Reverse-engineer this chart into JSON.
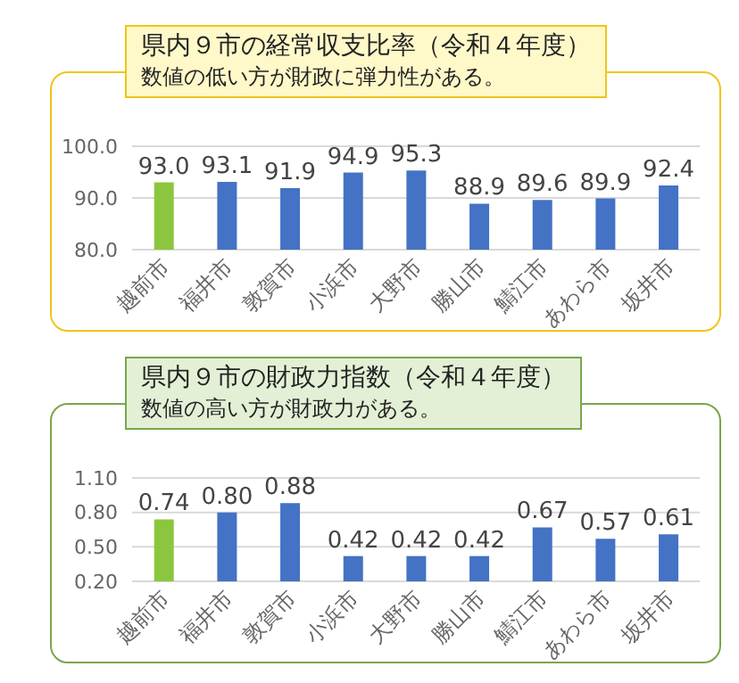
{
  "chart_data": [
    {
      "type": "bar",
      "title": "県内９市の経常収支比率（令和４年度）",
      "subtitle": "数値の低い方が財政に弾力性がある。",
      "categories": [
        "越前市",
        "福井市",
        "敦賀市",
        "小浜市",
        "大野市",
        "勝山市",
        "鯖江市",
        "あわら市",
        "坂井市"
      ],
      "values": [
        93.0,
        93.1,
        91.9,
        94.9,
        95.3,
        88.9,
        89.6,
        89.9,
        92.4
      ],
      "value_labels": [
        "93.0",
        "93.1",
        "91.9",
        "94.9",
        "95.3",
        "88.9",
        "89.6",
        "89.9",
        "92.4"
      ],
      "colors": [
        "#8cc63e",
        "#4472c4",
        "#4472c4",
        "#4472c4",
        "#4472c4",
        "#4472c4",
        "#4472c4",
        "#4472c4",
        "#4472c4"
      ],
      "ylim": [
        80,
        100
      ],
      "yticks": [
        {
          "value": 80,
          "label": "80.0"
        },
        {
          "value": 90,
          "label": "90.0"
        },
        {
          "value": 100,
          "label": "100.0"
        }
      ],
      "grid": "y"
    },
    {
      "type": "bar",
      "title": "県内９市の財政力指数（令和４年度）",
      "subtitle": "数値の高い方が財政力がある。",
      "categories": [
        "越前市",
        "福井市",
        "敦賀市",
        "小浜市",
        "大野市",
        "勝山市",
        "鯖江市",
        "あわら市",
        "坂井市"
      ],
      "values": [
        0.74,
        0.8,
        0.88,
        0.42,
        0.42,
        0.42,
        0.67,
        0.57,
        0.61
      ],
      "value_labels": [
        "0.74",
        "0.80",
        "0.88",
        "0.42",
        "0.42",
        "0.42",
        "0.67",
        "0.57",
        "0.61"
      ],
      "colors": [
        "#8cc63e",
        "#4472c4",
        "#4472c4",
        "#4472c4",
        "#4472c4",
        "#4472c4",
        "#4472c4",
        "#4472c4",
        "#4472c4"
      ],
      "ylim": [
        0.2,
        1.1
      ],
      "yticks": [
        {
          "value": 0.2,
          "label": "0.20"
        },
        {
          "value": 0.5,
          "label": "0.50"
        },
        {
          "value": 0.8,
          "label": "0.80"
        },
        {
          "value": 1.1,
          "label": "1.10"
        }
      ],
      "grid": "y"
    }
  ]
}
